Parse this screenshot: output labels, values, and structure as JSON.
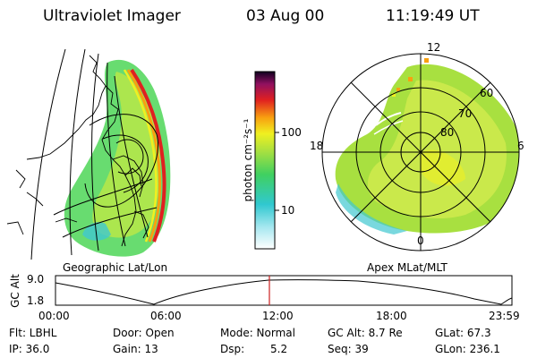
{
  "header": {
    "instrument": "Ultraviolet Imager",
    "date": "03 Aug 00",
    "time": "11:19:49 UT"
  },
  "panels": {
    "geographic_label": "Geographic Lat/Lon",
    "apex_label": "Apex MLat/MLT"
  },
  "colorbar": {
    "unit_label": "photon cm⁻²s⁻¹",
    "ticks": [
      "100",
      "10"
    ]
  },
  "polar": {
    "mlt_labels": {
      "top": "12",
      "left": "18",
      "right": "6",
      "bottom": "0"
    },
    "lat_labels": [
      "60",
      "70",
      "80"
    ]
  },
  "altitude_plot": {
    "ylabel": "GC Alt",
    "yticks": [
      "9.0",
      "1.8"
    ],
    "xticks": [
      "00:00",
      "06:00",
      "12:00",
      "18:00",
      "23:59"
    ],
    "marker_color": "#cc2020"
  },
  "info": {
    "flt": "Flt: LBHL",
    "ip": "IP: 36.0",
    "door": "Door: Open",
    "gain": "Gain: 13",
    "mode": "Mode: Normal",
    "dsp_label": "Dsp:",
    "dsp_value": "5.2",
    "gc_alt": "GC Alt: 8.7 Re",
    "seq": "Seq: 39",
    "glat": "GLat: 67.3",
    "glon": "GLon: 236.1"
  }
}
